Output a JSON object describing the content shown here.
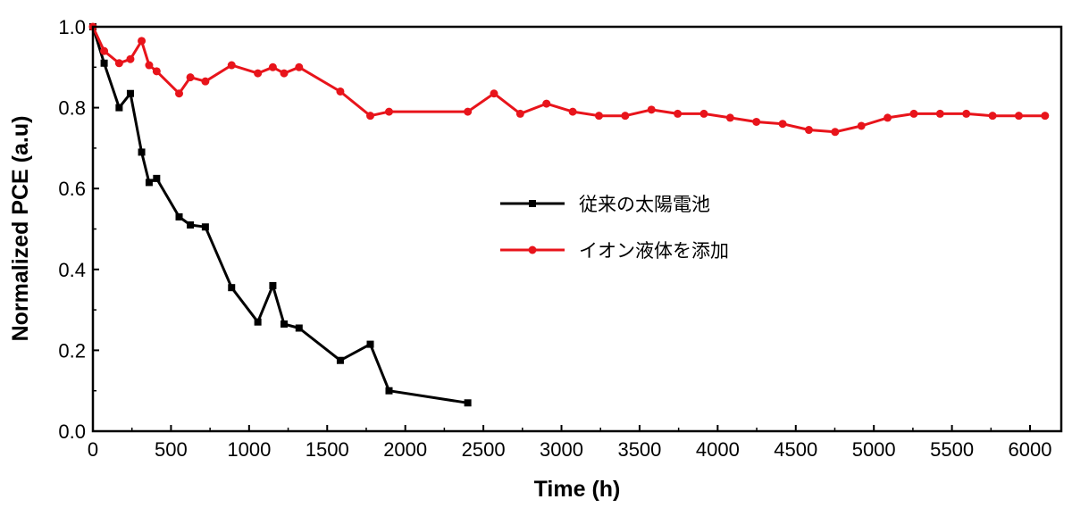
{
  "chart_data": {
    "type": "line",
    "title": "",
    "xlabel": "Time (h)",
    "ylabel": "Normalized PCE (a.u)",
    "xlim": [
      0,
      6200
    ],
    "ylim": [
      0,
      1.0
    ],
    "xticks": [
      0,
      500,
      1000,
      1500,
      2000,
      2500,
      3000,
      3500,
      4000,
      4500,
      5000,
      5500,
      6000
    ],
    "yticks": [
      0.0,
      0.2,
      0.4,
      0.6,
      0.8,
      1.0
    ],
    "ytick_labels": [
      "0.0",
      "0.2",
      "0.4",
      "0.6",
      "0.8",
      "1.0"
    ],
    "grid": false,
    "legend_position": "center-right",
    "series": [
      {
        "name": "従来の太陽電池",
        "color": "#000000",
        "marker": "square",
        "points": [
          [
            0,
            1.0
          ],
          [
            72,
            0.91
          ],
          [
            168,
            0.8
          ],
          [
            240,
            0.835
          ],
          [
            312,
            0.69
          ],
          [
            360,
            0.615
          ],
          [
            408,
            0.625
          ],
          [
            552,
            0.53
          ],
          [
            624,
            0.51
          ],
          [
            720,
            0.505
          ],
          [
            888,
            0.355
          ],
          [
            1056,
            0.27
          ],
          [
            1152,
            0.36
          ],
          [
            1224,
            0.265
          ],
          [
            1320,
            0.255
          ],
          [
            1584,
            0.175
          ],
          [
            1776,
            0.215
          ],
          [
            1896,
            0.1
          ],
          [
            2400,
            0.07
          ]
        ]
      },
      {
        "name": "イオン液体を添加",
        "color": "#e8141b",
        "marker": "circle",
        "points": [
          [
            0,
            1.0
          ],
          [
            72,
            0.94
          ],
          [
            168,
            0.91
          ],
          [
            240,
            0.92
          ],
          [
            312,
            0.965
          ],
          [
            360,
            0.905
          ],
          [
            408,
            0.89
          ],
          [
            552,
            0.835
          ],
          [
            624,
            0.875
          ],
          [
            720,
            0.865
          ],
          [
            888,
            0.905
          ],
          [
            1056,
            0.885
          ],
          [
            1152,
            0.9
          ],
          [
            1224,
            0.885
          ],
          [
            1320,
            0.9
          ],
          [
            1584,
            0.84
          ],
          [
            1776,
            0.78
          ],
          [
            1896,
            0.79
          ],
          [
            2400,
            0.79
          ],
          [
            2568,
            0.835
          ],
          [
            2736,
            0.785
          ],
          [
            2904,
            0.81
          ],
          [
            3072,
            0.79
          ],
          [
            3240,
            0.78
          ],
          [
            3408,
            0.78
          ],
          [
            3576,
            0.795
          ],
          [
            3744,
            0.785
          ],
          [
            3912,
            0.785
          ],
          [
            4080,
            0.775
          ],
          [
            4248,
            0.765
          ],
          [
            4416,
            0.76
          ],
          [
            4584,
            0.745
          ],
          [
            4752,
            0.74
          ],
          [
            4920,
            0.755
          ],
          [
            5088,
            0.775
          ],
          [
            5256,
            0.785
          ],
          [
            5424,
            0.785
          ],
          [
            5592,
            0.785
          ],
          [
            5760,
            0.78
          ],
          [
            5928,
            0.78
          ],
          [
            6096,
            0.78
          ]
        ]
      }
    ]
  }
}
